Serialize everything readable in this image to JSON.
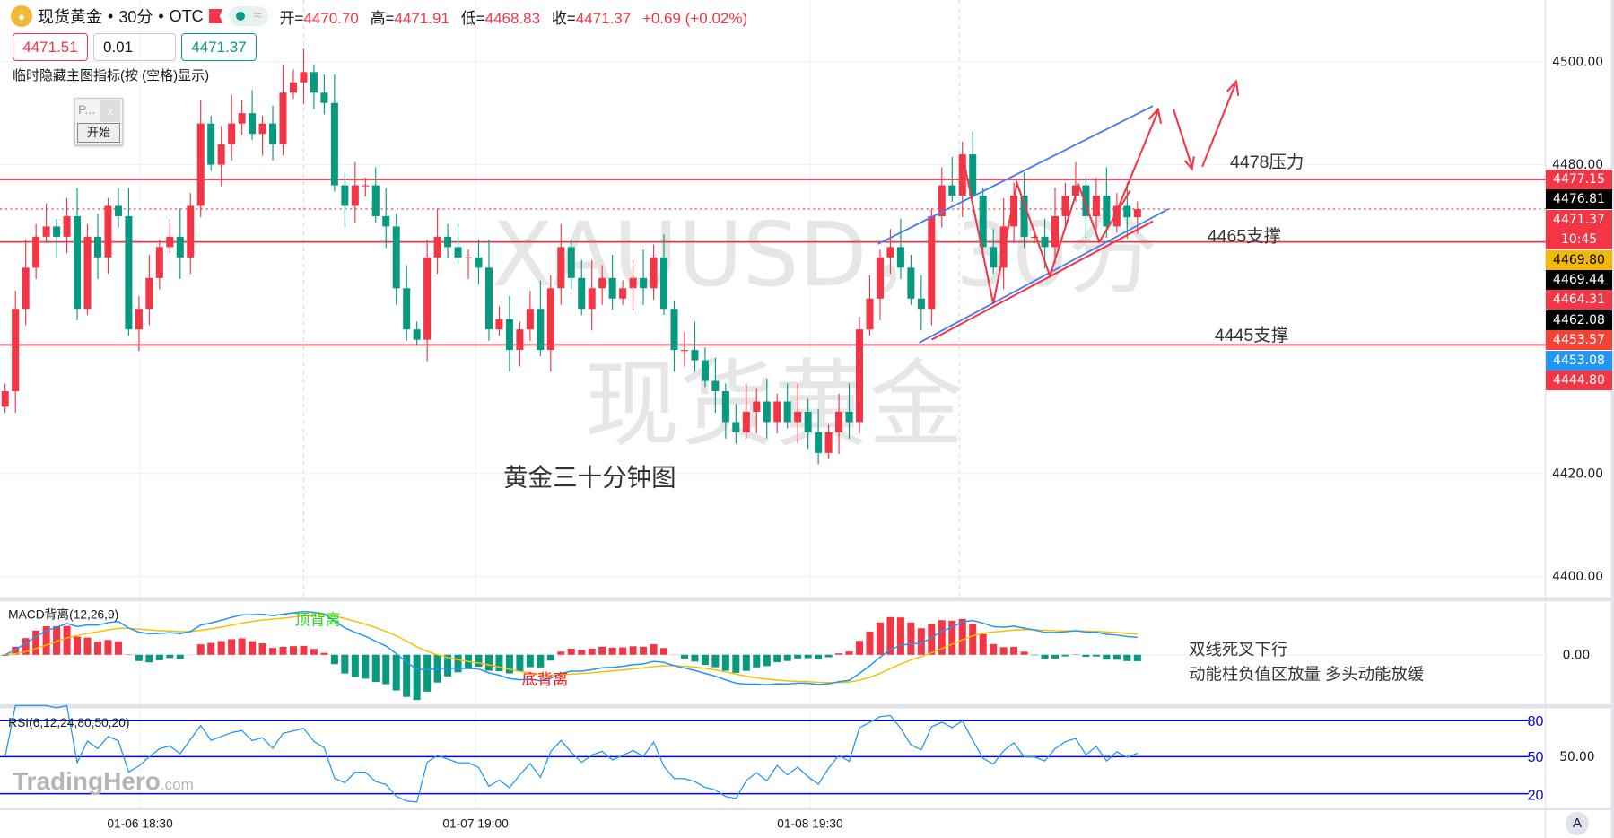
{
  "header": {
    "symbol": "现货黄金",
    "interval": "30分",
    "exchange": "OTC",
    "open_label": "开=",
    "open": "4470.70",
    "high_label": "高=",
    "high": "4471.91",
    "low_label": "低=",
    "low": "4468.83",
    "close_label": "收=",
    "close": "4471.37",
    "change": "+0.69 (+0.02%)"
  },
  "order": {
    "sell": "4471.51",
    "qty": "0.01",
    "buy": "4471.37"
  },
  "hint": "临时隐藏主图指标(按 (空格)显示)",
  "mini_panel": {
    "title": "P...",
    "close": "x",
    "start": "开始"
  },
  "price_axis": {
    "ticks": [
      "4500.00",
      "4480.00",
      "4420.00",
      "4400.00"
    ]
  },
  "tags": [
    {
      "text": "4477.15",
      "color": "#f23645"
    },
    {
      "text": "4476.81",
      "color": "#000000"
    },
    {
      "text": "4471.37",
      "color": "#f23645"
    },
    {
      "text": "10:45",
      "color": "#f23645"
    },
    {
      "text": "4469.80",
      "color": "#f5b800"
    },
    {
      "text": "4469.44",
      "color": "#000000"
    },
    {
      "text": "4464.31",
      "color": "#f23645"
    },
    {
      "text": "4462.08",
      "color": "#000000"
    },
    {
      "text": "4453.57",
      "color": "#f44336"
    },
    {
      "text": "4453.08",
      "color": "#2196f3"
    },
    {
      "text": "4444.80",
      "color": "#f23645"
    }
  ],
  "annotations": {
    "resistance": "4478压力",
    "support1": "4465支撑",
    "support2": "4445支撑",
    "caption": "黄金三十分钟图",
    "macd_note1": "双线死叉下行",
    "macd_note2": "动能柱负值区放量  多头动能放缓",
    "top_div": "顶背离",
    "bottom_div": "底背离"
  },
  "watermark": {
    "line1": "XAUUSD，30分",
    "line2": "现货黄金",
    "brand": "TradingHero",
    "brand_suffix": ".com"
  },
  "macd": {
    "label": "MACD背离(12,26,9)",
    "zero": "0.00"
  },
  "rsi": {
    "label": "RSI(6,12,24,80,50,20)",
    "levels": [
      "80",
      "50",
      "20"
    ],
    "axis": "50.00"
  },
  "time_axis": [
    "01-06 18:30",
    "01-07 19:00",
    "01-08 19:30"
  ],
  "auto_button": "A",
  "colors": {
    "up": "#f23645",
    "down": "#089981",
    "level": "#f23645",
    "channel": "#4a7df0",
    "macd": "#2196f3",
    "signal": "#f5c000",
    "rsi": "#2196f3"
  },
  "chart_data": {
    "type": "candlestick",
    "levels": [
      4477.15,
      4465,
      4445
    ],
    "current_price": 4471.37,
    "ylim": [
      4400,
      4500
    ],
    "closes": [
      4436,
      4452,
      4460,
      4466,
      4468,
      4466,
      4470,
      4452,
      4466,
      4462,
      4472,
      4470,
      4448,
      4452,
      4458,
      4464,
      4466,
      4462,
      4472,
      4488,
      4480,
      4484,
      4488,
      4490,
      4486,
      4488,
      4484,
      4494,
      4496,
      4498,
      4494,
      4492,
      4476,
      4472,
      4476,
      4476,
      4470,
      4468,
      4456,
      4448,
      4446,
      4462,
      4466,
      4464,
      4462,
      4462,
      4460,
      4448,
      4450,
      4444,
      4448,
      4452,
      4444,
      4456,
      4464,
      4458,
      4452,
      4456,
      4458,
      4454,
      4456,
      4458,
      4456,
      4462,
      4452,
      4444,
      4444,
      4442,
      4438,
      4436,
      4430,
      4428,
      4432,
      4434,
      4430,
      4434,
      4430,
      4432,
      4428,
      4424,
      4428,
      4432,
      4430,
      4448,
      4454,
      4462,
      4464,
      4460,
      4454,
      4452,
      4470,
      4476,
      4474,
      4482,
      4474,
      4464,
      4460,
      4468,
      4474,
      4466,
      4466,
      4464,
      4470,
      4474,
      4476,
      4470,
      4474,
      4468,
      4472,
      4469.8,
      4471.37
    ]
  }
}
